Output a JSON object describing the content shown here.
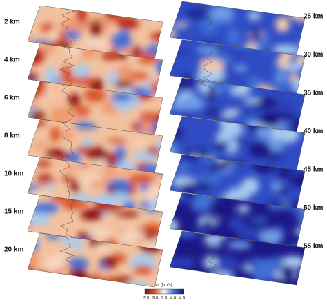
{
  "left_panels": [
    "2 km",
    "4 km",
    "6 km",
    "8 km",
    "10 km",
    "15 km",
    "20 km"
  ],
  "right_panels": [
    "25 km",
    "30 km",
    "35 km",
    "40 km",
    "45 km",
    "50 km",
    "55 km"
  ],
  "colorbar": {
    "title": "Vs (km/s)",
    "ticks": [
      "2.5",
      "3.0",
      "3.5",
      "4.0",
      "4.5"
    ]
  }
}
